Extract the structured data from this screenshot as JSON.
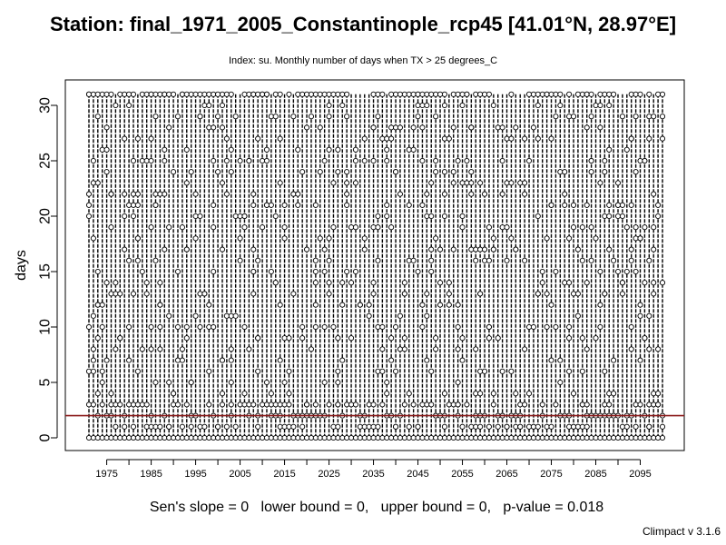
{
  "chart_data": {
    "type": "boxplot",
    "title": "Station: final_1971_2005_Constantinople_rcp45 [41.01°N, 28.97°E]",
    "subtitle": "Index: su. Monthly number of days when TX > 25 degrees_C",
    "ylabel": "days",
    "xlabel": "",
    "ylim": [
      0,
      31
    ],
    "y_ticks": [
      0,
      5,
      10,
      15,
      20,
      25,
      30
    ],
    "x_ticks": [
      "1975",
      "1985",
      "1995",
      "2005",
      "2015",
      "2025",
      "2035",
      "2045",
      "2055",
      "2065",
      "2075",
      "2085",
      "2095"
    ],
    "year_range": [
      1971,
      2100
    ],
    "per_year_boxplot": {
      "median": 0,
      "lower_quartile": 0,
      "lower_whisker": 0,
      "upper_whisker": 0,
      "outliers_description_values": [
        1,
        2,
        3,
        4,
        5,
        6,
        7,
        8,
        9,
        10,
        11,
        12,
        13,
        14,
        15,
        16,
        17,
        18,
        19,
        20,
        21,
        22,
        23,
        24,
        25,
        26,
        27,
        28,
        29,
        30,
        31
      ]
    },
    "reference_line": {
      "y": 2,
      "color": "#8b1a1a"
    },
    "trend_text": "Sen's slope = 0   lower bound = 0,   upper bound = 0,   p-value = 0.018"
  },
  "footer": "Climpact v 3.1.6",
  "colors": {
    "axis": "#000000",
    "box": "#000000",
    "reference_line": "#8b1a1a",
    "background": "#ffffff"
  }
}
